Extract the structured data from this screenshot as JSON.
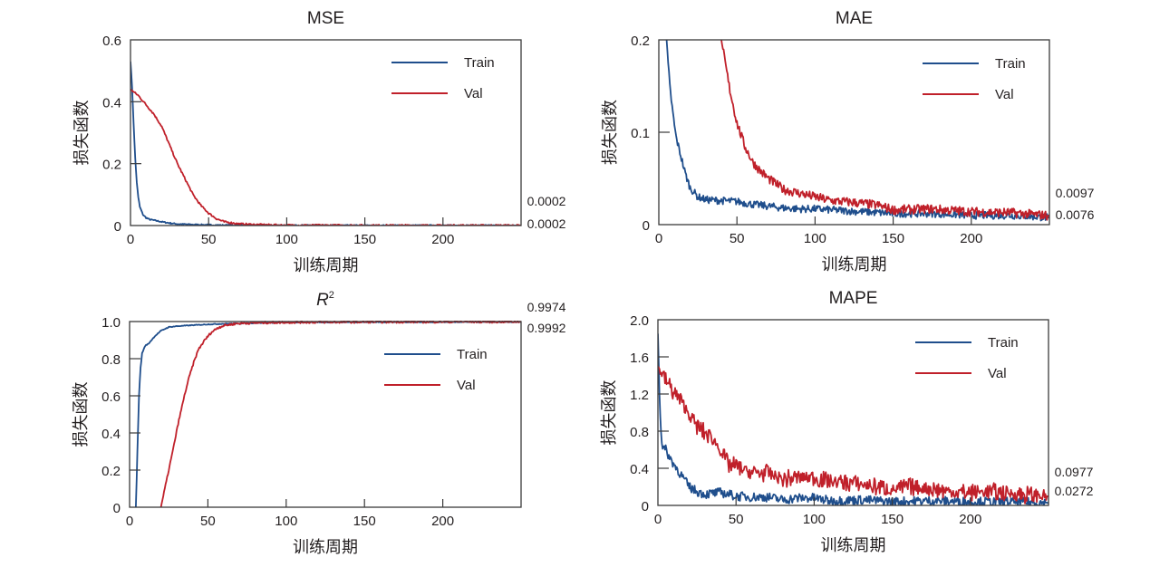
{
  "figure": {
    "colors": {
      "train": "#1f4e8c",
      "val": "#c0202a",
      "axis": "#3a3a3a"
    }
  },
  "chart_data": [
    {
      "id": "mse",
      "type": "line",
      "title": "MSE",
      "xlabel": "训练周期",
      "ylabel": "损失函数",
      "xlim": [
        0,
        250
      ],
      "ylim": [
        0,
        0.6
      ],
      "xticks": [
        0,
        50,
        100,
        150,
        200
      ],
      "xtick_labels": [
        "0",
        "50",
        "100",
        "150",
        "200"
      ],
      "yticks": [
        0,
        0.2,
        0.4,
        0.6
      ],
      "ytick_labels": [
        "0",
        "0.2",
        "0.4",
        "0.6"
      ],
      "grid": false,
      "legend": {
        "position": "top-right",
        "entries": [
          "Train",
          "Val"
        ]
      },
      "end_labels": [
        "0.0002",
        "0.0002"
      ],
      "series": [
        {
          "name": "Train",
          "noise": 0.002,
          "x": [
            0,
            1,
            2,
            3,
            4,
            5,
            6,
            8,
            10,
            12,
            15,
            20,
            25,
            30,
            40,
            60,
            100,
            150,
            200,
            250
          ],
          "y": [
            0.53,
            0.45,
            0.33,
            0.22,
            0.14,
            0.09,
            0.06,
            0.035,
            0.025,
            0.02,
            0.017,
            0.012,
            0.008,
            0.005,
            0.003,
            0.001,
            0.0005,
            0.0003,
            0.0002,
            0.0002
          ]
        },
        {
          "name": "Val",
          "noise": 0.003,
          "x": [
            0,
            5,
            10,
            15,
            20,
            25,
            30,
            35,
            40,
            45,
            50,
            55,
            60,
            70,
            80,
            100,
            150,
            200,
            250
          ],
          "y": [
            0.44,
            0.42,
            0.39,
            0.36,
            0.32,
            0.26,
            0.2,
            0.15,
            0.1,
            0.065,
            0.04,
            0.022,
            0.012,
            0.005,
            0.003,
            0.001,
            0.0004,
            0.0002,
            0.0002
          ]
        }
      ]
    },
    {
      "id": "mae",
      "type": "line",
      "title": "MAE",
      "xlabel": "训练周期",
      "ylabel": "损失函数",
      "xlim": [
        0,
        250
      ],
      "ylim": [
        0,
        0.2
      ],
      "xticks": [
        0,
        50,
        100,
        150,
        200
      ],
      "xtick_labels": [
        "0",
        "50",
        "100",
        "150",
        "200"
      ],
      "yticks": [
        0,
        0.1,
        0.2
      ],
      "ytick_labels": [
        "0",
        "0.1",
        "0.2"
      ],
      "grid": false,
      "legend": {
        "position": "top-right",
        "entries": [
          "Train",
          "Val"
        ]
      },
      "end_labels": [
        "0.0097",
        "0.0076"
      ],
      "series": [
        {
          "name": "Train",
          "noise": 0.004,
          "x": [
            5,
            7,
            9,
            11,
            14,
            17,
            20,
            25,
            30,
            40,
            50,
            60,
            70,
            80,
            90,
            100,
            120,
            150,
            175,
            200,
            225,
            250
          ],
          "y": [
            0.2,
            0.15,
            0.12,
            0.095,
            0.075,
            0.055,
            0.04,
            0.03,
            0.027,
            0.026,
            0.025,
            0.022,
            0.02,
            0.018,
            0.017,
            0.017,
            0.015,
            0.012,
            0.012,
            0.01,
            0.01,
            0.0076
          ]
        },
        {
          "name": "Val",
          "noise": 0.005,
          "x": [
            40,
            42,
            45,
            50,
            55,
            60,
            65,
            70,
            75,
            80,
            90,
            100,
            110,
            125,
            140,
            150,
            175,
            200,
            225,
            250
          ],
          "y": [
            0.2,
            0.18,
            0.15,
            0.11,
            0.085,
            0.068,
            0.058,
            0.05,
            0.044,
            0.038,
            0.034,
            0.03,
            0.026,
            0.024,
            0.021,
            0.016,
            0.017,
            0.014,
            0.013,
            0.0097
          ]
        }
      ]
    },
    {
      "id": "r2",
      "type": "line",
      "title": "R",
      "title_superscript": "2",
      "xlabel": "训练周期",
      "ylabel": "损失函数",
      "xlim": [
        0,
        250
      ],
      "ylim": [
        0,
        1.0
      ],
      "xticks": [
        0,
        50,
        100,
        150,
        200
      ],
      "xtick_labels": [
        "0",
        "50",
        "100",
        "150",
        "200"
      ],
      "yticks": [
        0,
        0.2,
        0.4,
        0.6,
        0.8,
        1.0
      ],
      "ytick_labels": [
        "0",
        "0.2",
        "0.4",
        "0.6",
        "0.8",
        "1.0"
      ],
      "grid": false,
      "legend": {
        "position": "center-right",
        "entries": [
          "Train",
          "Val"
        ]
      },
      "end_labels": [
        "0.9974",
        "0.9992"
      ],
      "series": [
        {
          "name": "Train",
          "noise": 0.002,
          "x": [
            4,
            5,
            6,
            7,
            8,
            10,
            12,
            14,
            16,
            20,
            25,
            30,
            40,
            50,
            60,
            80,
            100,
            150,
            200,
            250
          ],
          "y": [
            0,
            0.3,
            0.6,
            0.75,
            0.83,
            0.87,
            0.88,
            0.9,
            0.92,
            0.95,
            0.97,
            0.975,
            0.98,
            0.985,
            0.988,
            0.992,
            0.995,
            0.997,
            0.997,
            0.9974
          ]
        },
        {
          "name": "Val",
          "noise": 0.006,
          "x": [
            20,
            22,
            25,
            28,
            31,
            35,
            38,
            41,
            44,
            48,
            52,
            56,
            60,
            65,
            70,
            80,
            100,
            150,
            200,
            250
          ],
          "y": [
            0,
            0.08,
            0.2,
            0.32,
            0.45,
            0.6,
            0.7,
            0.78,
            0.85,
            0.9,
            0.94,
            0.965,
            0.978,
            0.985,
            0.99,
            0.993,
            0.996,
            0.998,
            0.999,
            0.9992
          ]
        }
      ]
    },
    {
      "id": "mape",
      "type": "line",
      "title": "MAPE",
      "xlabel": "训练周期",
      "ylabel": "损失函数",
      "xlim": [
        0,
        250
      ],
      "ylim": [
        0,
        2.0
      ],
      "xticks": [
        0,
        50,
        100,
        150,
        200
      ],
      "xtick_labels": [
        "0",
        "50",
        "100",
        "150",
        "200"
      ],
      "yticks": [
        0,
        0.4,
        0.8,
        1.2,
        1.6,
        2.0
      ],
      "ytick_labels": [
        "0",
        "0.4",
        "0.8",
        "1.2",
        "1.6",
        "2.0"
      ],
      "grid": false,
      "legend": {
        "position": "top-right",
        "entries": [
          "Train",
          "Val"
        ]
      },
      "end_labels": [
        "0.0977",
        "0.0272"
      ],
      "series": [
        {
          "name": "Train",
          "noise": 0.05,
          "x": [
            0,
            1,
            2,
            3,
            5,
            8,
            12,
            16,
            20,
            25,
            30,
            40,
            45,
            50,
            60,
            70,
            80,
            90,
            100,
            110,
            130,
            150,
            175,
            200,
            225,
            250
          ],
          "y": [
            1.85,
            1.2,
            0.8,
            0.62,
            0.6,
            0.5,
            0.4,
            0.3,
            0.2,
            0.15,
            0.12,
            0.14,
            0.12,
            0.1,
            0.09,
            0.09,
            0.06,
            0.08,
            0.08,
            0.05,
            0.06,
            0.04,
            0.05,
            0.04,
            0.04,
            0.0272
          ]
        },
        {
          "name": "Val",
          "noise": 0.1,
          "x": [
            0,
            5,
            10,
            15,
            20,
            25,
            30,
            35,
            40,
            45,
            50,
            60,
            70,
            80,
            90,
            100,
            110,
            125,
            140,
            150,
            160,
            175,
            190,
            200,
            210,
            225,
            250
          ],
          "y": [
            1.5,
            1.35,
            1.22,
            1.12,
            0.98,
            0.85,
            0.78,
            0.72,
            0.6,
            0.44,
            0.42,
            0.35,
            0.35,
            0.28,
            0.3,
            0.3,
            0.26,
            0.24,
            0.2,
            0.17,
            0.2,
            0.18,
            0.14,
            0.14,
            0.15,
            0.13,
            0.0977
          ]
        }
      ]
    }
  ]
}
